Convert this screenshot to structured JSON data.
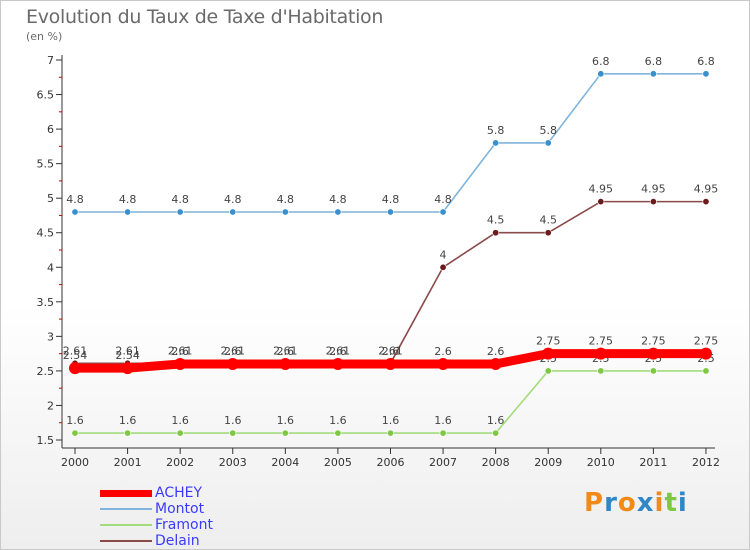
{
  "header": {
    "title": "Evolution du Taux de Taxe d'Habitation",
    "unit": "(en %)"
  },
  "logo": {
    "text": "Proxiti",
    "letter_colors": [
      "#f28a1a",
      "#2f86c9",
      "#f28a1a",
      "#2f86c9",
      "#f28a1a",
      "#7ec843",
      "#2f86c9"
    ]
  },
  "chart_data": {
    "type": "line",
    "title": "Evolution du Taux de Taxe d'Habitation",
    "ylabel": "(en %)",
    "xlabel": "",
    "x": [
      "2000",
      "2001",
      "2002",
      "2003",
      "2004",
      "2005",
      "2006",
      "2007",
      "2008",
      "2009",
      "2010",
      "2011",
      "2012"
    ],
    "ylim": [
      1.5,
      7
    ],
    "yticks": [
      "1.5",
      "2",
      "2.5",
      "3",
      "3.5",
      "4",
      "4.5",
      "5",
      "5.5",
      "6",
      "6.5",
      "7"
    ],
    "grid": false,
    "legend_position": "bottom-left",
    "series": [
      {
        "name": "Montot",
        "color": "#7fb4dc",
        "marker_color": "#3a8fcd",
        "values": [
          4.8,
          4.8,
          4.8,
          4.8,
          4.8,
          4.8,
          4.8,
          4.8,
          5.8,
          5.8,
          6.8,
          6.8,
          6.8
        ],
        "labels": [
          "4.8",
          "4.8",
          "4.8",
          "4.8",
          "4.8",
          "4.8",
          "4.8",
          "4.8",
          "5.8",
          "5.8",
          "6.8",
          "6.8",
          "6.8"
        ]
      },
      {
        "name": "Delain",
        "color": "#8a4a4a",
        "marker_color": "#6b1b1b",
        "values": [
          2.61,
          2.61,
          2.61,
          2.61,
          2.61,
          2.61,
          2.61,
          4,
          4.5,
          4.5,
          4.95,
          4.95,
          4.95
        ],
        "labels": [
          "2.61",
          "2.61",
          "2.61",
          "2.61",
          "2.61",
          "2.61",
          "2.61",
          "4",
          "4.5",
          "4.5",
          "4.95",
          "4.95",
          "4.95"
        ]
      },
      {
        "name": "Framont",
        "color": "#a3dc7d",
        "marker_color": "#7ec843",
        "values": [
          1.6,
          1.6,
          1.6,
          1.6,
          1.6,
          1.6,
          1.6,
          1.6,
          1.6,
          2.5,
          2.5,
          2.5,
          2.5
        ],
        "labels": [
          "1.6",
          "1.6",
          "1.6",
          "1.6",
          "1.6",
          "1.6",
          "1.6",
          "1.6",
          "1.6",
          "2.5",
          "2.5",
          "2.5",
          "2.5"
        ]
      },
      {
        "name": "ACHEY",
        "color": "#ff0000",
        "marker_color": "#ff0000",
        "values": [
          2.54,
          2.54,
          2.6,
          2.6,
          2.6,
          2.6,
          2.6,
          2.6,
          2.6,
          2.75,
          2.75,
          2.75,
          2.75
        ],
        "labels": [
          "2.54",
          "2.54",
          "2.6",
          "2.6",
          "2.6",
          "2.6",
          "2.6",
          "2.6",
          "2.6",
          "2.75",
          "2.75",
          "2.75",
          "2.75"
        ]
      }
    ],
    "legend_order": [
      "ACHEY",
      "Montot",
      "Framont",
      "Delain"
    ]
  }
}
